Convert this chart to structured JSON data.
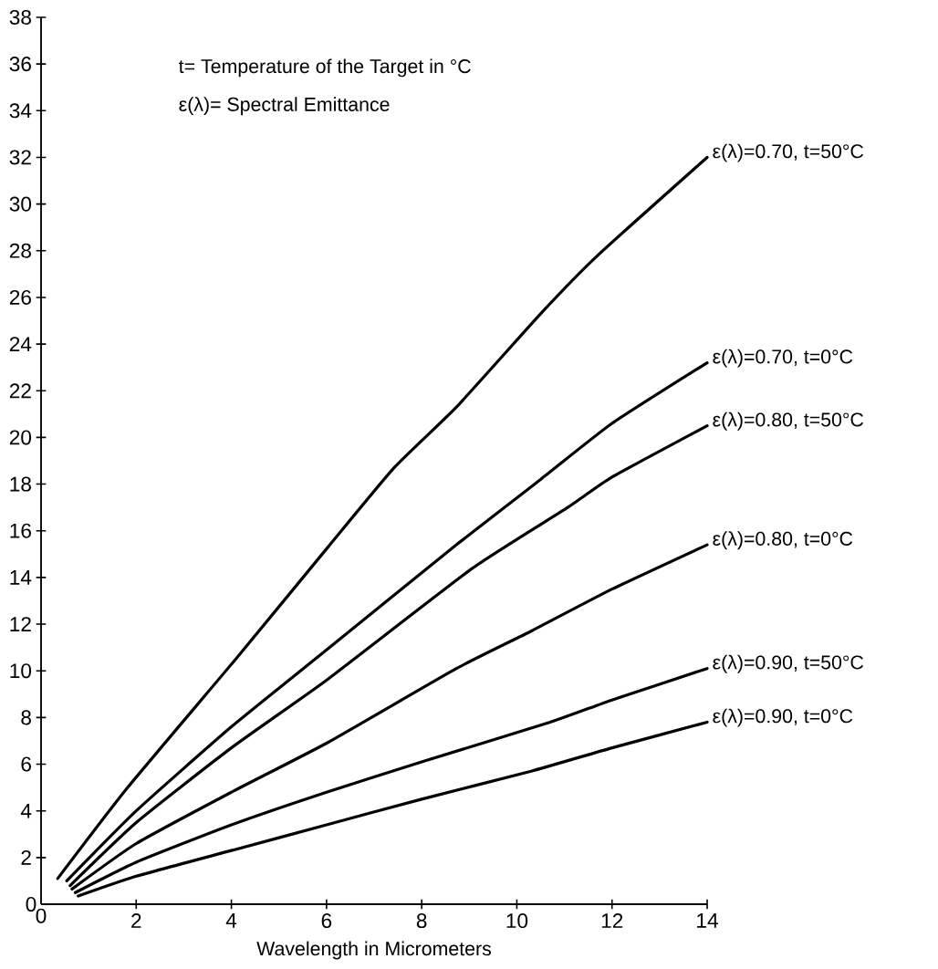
{
  "chart_data": {
    "type": "line",
    "xlabel": "Wavelength in Micrometers",
    "xlim": [
      0,
      14
    ],
    "ylim": [
      0,
      38
    ],
    "xticks": [
      0,
      2,
      4,
      6,
      8,
      10,
      12,
      14
    ],
    "yticks": [
      0,
      2,
      4,
      6,
      8,
      10,
      12,
      14,
      16,
      18,
      20,
      22,
      24,
      26,
      28,
      30,
      32,
      34,
      36,
      38
    ],
    "annotations": [
      "t= Temperature of the Target in °C",
      "ε(λ)= Spectral Emittance"
    ],
    "series": [
      {
        "name": "ε(λ)=0.70, t=50°C",
        "color": "#000000",
        "x": [
          0.35,
          1.82,
          4.09,
          6.03,
          7.42,
          8.73,
          10.5,
          11.7,
          14
        ],
        "values": [
          1.1,
          5.0,
          10.5,
          15.3,
          18.7,
          21.3,
          25.3,
          27.8,
          32
        ]
      },
      {
        "name": "ε(λ)=0.70, t=0°C",
        "color": "#000000",
        "x": [
          0.54,
          2,
          4,
          6,
          8.73,
          10.5,
          12,
          14
        ],
        "values": [
          1.0,
          4.0,
          7.6,
          10.9,
          15.4,
          18.2,
          20.6,
          23.2
        ]
      },
      {
        "name": "ε(λ)=0.80, t=50°C",
        "color": "#000000",
        "x": [
          0.61,
          2,
          4,
          6,
          9.07,
          11.07,
          12,
          14
        ],
        "values": [
          0.8,
          3.5,
          6.7,
          9.6,
          14.4,
          17.0,
          18.3,
          20.5
        ]
      },
      {
        "name": "ε(λ)=0.80, t=0°C",
        "color": "#000000",
        "x": [
          0.65,
          2,
          4,
          6,
          8.73,
          10.3,
          12,
          14
        ],
        "values": [
          0.65,
          2.6,
          4.8,
          6.9,
          10.1,
          11.7,
          13.5,
          15.4
        ]
      },
      {
        "name": "ε(λ)=0.90, t=50°C",
        "color": "#000000",
        "x": [
          0.72,
          2,
          4,
          6,
          8,
          10.7,
          12,
          14
        ],
        "values": [
          0.5,
          1.8,
          3.4,
          4.8,
          6.1,
          7.8,
          8.75,
          10.1
        ]
      },
      {
        "name": "ε(λ)=0.90, t=0°C",
        "color": "#000000",
        "x": [
          0.78,
          2,
          4,
          6,
          8,
          10.3,
          12,
          14
        ],
        "values": [
          0.35,
          1.2,
          2.3,
          3.4,
          4.5,
          5.7,
          6.7,
          7.8
        ]
      }
    ]
  }
}
